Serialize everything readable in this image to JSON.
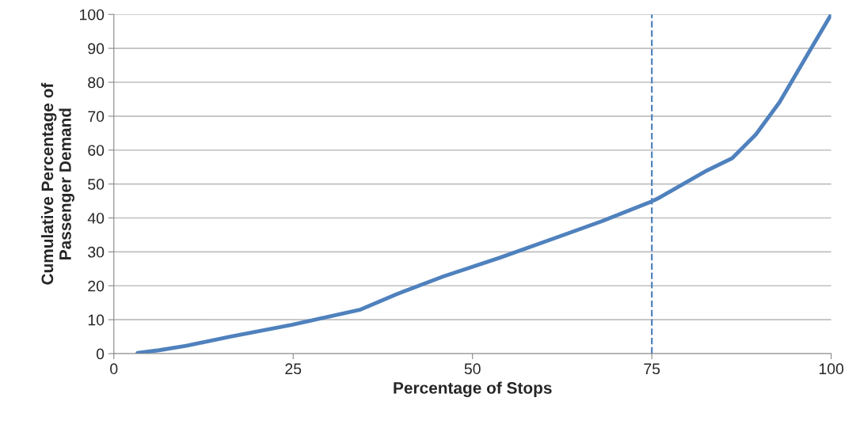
{
  "chart_data": {
    "type": "line",
    "xlabel": "Percentage of Stops",
    "ylabel": "Cumulative Percentage of\nPassenger Demand",
    "x": [
      3.3,
      6.3,
      10.1,
      16.2,
      24.8,
      34.4,
      39.4,
      46,
      53.7,
      61.4,
      68,
      74.9,
      75.8,
      82.7,
      86.2,
      89.5,
      92.8,
      96.1,
      100
    ],
    "series": [
      {
        "color": "#4f81bd",
        "values": [
          0.2,
          1.0,
          2.3,
          5.0,
          8.5,
          13,
          17.5,
          22.8,
          28.2,
          34,
          39,
          44.8,
          45.7,
          54,
          57.6,
          64.6,
          74.1,
          86,
          100
        ]
      }
    ],
    "xlim": [
      0,
      100
    ],
    "xticks": [
      0,
      25,
      50,
      75,
      100
    ],
    "ylim": [
      0,
      100
    ],
    "yticks": [
      0,
      10,
      20,
      30,
      40,
      50,
      60,
      70,
      80,
      90,
      100
    ],
    "grid": "y",
    "marker": "none",
    "line_style": "solid",
    "ref_lines": [
      {
        "axis": "x",
        "value": 75,
        "color": "#4f81bd",
        "line_style": "dashed"
      }
    ]
  }
}
